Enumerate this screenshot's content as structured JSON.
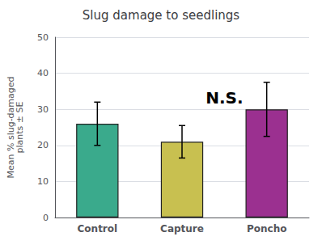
{
  "chart_data": {
    "type": "bar",
    "title": "Slug damage to seedlings",
    "ylabel": "Mean % slug-damaged\nplants ± SE",
    "categories": [
      "Control",
      "Capture",
      "Poncho"
    ],
    "values": [
      26.0,
      21.0,
      30.0
    ],
    "errors": [
      6.0,
      4.5,
      7.5
    ],
    "colors": [
      "#3aaa8c",
      "#c8c050",
      "#9b3090"
    ],
    "ylim": [
      0,
      50
    ],
    "yticks": [
      0,
      10,
      20,
      30,
      40,
      50
    ],
    "grid": true,
    "annotations": [
      {
        "text": "N.S.",
        "x": 1.5,
        "y": 31
      }
    ]
  }
}
